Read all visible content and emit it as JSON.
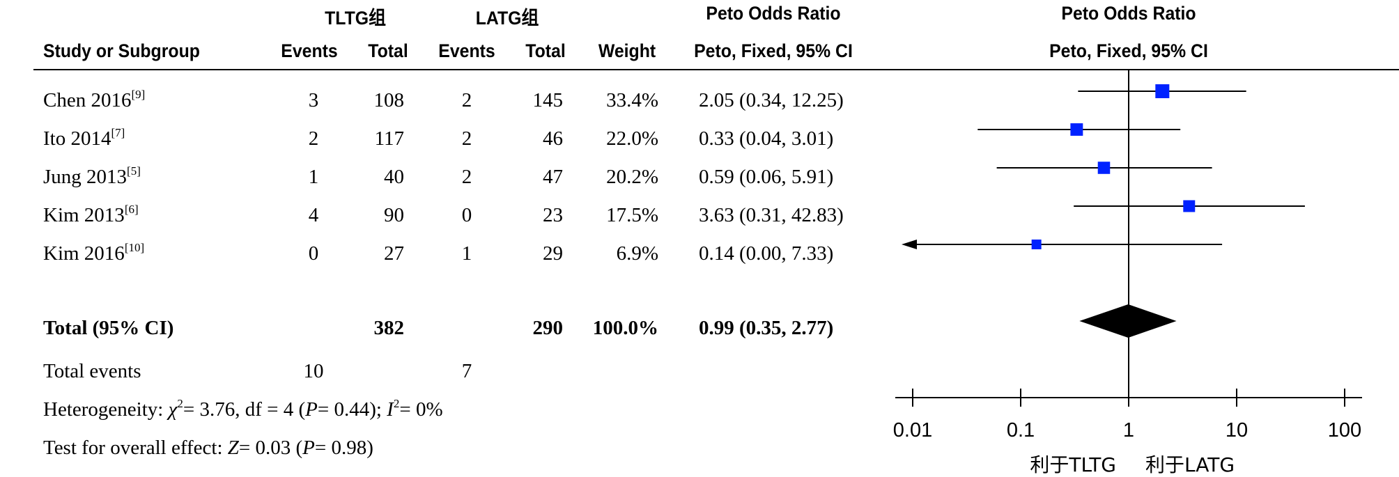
{
  "groups": {
    "experimental": "TLTG组",
    "control": "LATG组"
  },
  "headers": {
    "study": "Study or Subgroup",
    "events": "Events",
    "total": "Total",
    "weight": "Weight",
    "effect_title": "Peto Odds Ratio",
    "effect_method": "Peto, Fixed, 95% CI",
    "plot_title": "Peto Odds Ratio",
    "plot_method": "Peto, Fixed, 95% CI"
  },
  "studies": [
    {
      "name": "Chen 2016",
      "ref": "[9]",
      "e_events": "3",
      "e_total": "108",
      "c_events": "2",
      "c_total": "145",
      "weight": "33.4%",
      "ci": "2.05 (0.34, 12.25)"
    },
    {
      "name": "Ito 2014",
      "ref": "[7]",
      "e_events": "2",
      "e_total": "117",
      "c_events": "2",
      "c_total": "46",
      "weight": "22.0%",
      "ci": "0.33 (0.04, 3.01)"
    },
    {
      "name": "Jung 2013",
      "ref": "[5]",
      "e_events": "1",
      "e_total": "40",
      "c_events": "2",
      "c_total": "47",
      "weight": "20.2%",
      "ci": "0.59 (0.06, 5.91)"
    },
    {
      "name": "Kim 2013",
      "ref": "[6]",
      "e_events": "4",
      "e_total": "90",
      "c_events": "0",
      "c_total": "23",
      "weight": "17.5%",
      "ci": "3.63 (0.31, 42.83)"
    },
    {
      "name": "Kim 2016",
      "ref": "[10]",
      "e_events": "0",
      "e_total": "27",
      "c_events": "1",
      "c_total": "29",
      "weight": "6.9%",
      "ci": "0.14 (0.00, 7.33)"
    }
  ],
  "total": {
    "label": "Total (95% CI)",
    "e_total": "382",
    "c_total": "290",
    "weight": "100.0%",
    "ci": "0.99 (0.35, 2.77)"
  },
  "total_events": {
    "label": "Total events",
    "e": "10",
    "c": "7"
  },
  "heterogeneity": {
    "prefix": "Heterogeneity: ",
    "chi_sym": "χ",
    "chi_sup": "2",
    "chi_val": "= 3.76, df = 4 (",
    "p_sym": "P",
    "p_val": "= 0.44); ",
    "i_sym": "I",
    "i_sup": "2",
    "i_val": "= 0%"
  },
  "overall": {
    "prefix": "Test for overall effect: ",
    "z_sym": "Z",
    "z_val": "= 0.03 (",
    "p_sym": "P",
    "p_val": "= 0.98)"
  },
  "chart_data": {
    "type": "forest",
    "scale": "log",
    "xlim": [
      0.01,
      100
    ],
    "ticks": [
      "0.01",
      "0.1",
      "1",
      "10",
      "100"
    ],
    "tick_values": [
      0.01,
      0.1,
      1,
      10,
      100
    ],
    "null_value": 1,
    "favours_left": "利于TLTG",
    "favours_right": "利于LATG",
    "square_color": "#0022ff",
    "points": [
      {
        "or": 2.05,
        "lo": 0.34,
        "hi": 12.25,
        "weight": 33.4
      },
      {
        "or": 0.33,
        "lo": 0.04,
        "hi": 3.01,
        "weight": 22.0
      },
      {
        "or": 0.59,
        "lo": 0.06,
        "hi": 5.91,
        "weight": 20.2
      },
      {
        "or": 3.63,
        "lo": 0.31,
        "hi": 42.83,
        "weight": 17.5
      },
      {
        "or": 0.14,
        "lo": 0.0,
        "hi": 7.33,
        "weight": 6.9
      }
    ],
    "pooled": {
      "or": 0.99,
      "lo": 0.35,
      "hi": 2.77
    }
  }
}
